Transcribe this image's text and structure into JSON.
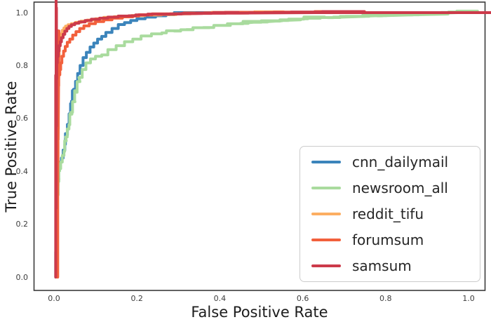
{
  "figure": {
    "background": "#ffffff",
    "spine_color": "#3b3b3b",
    "tick_color": "#3d3d3d",
    "label_color": "#1c1c1c"
  },
  "chart_data": {
    "type": "line",
    "subtype": "roc-curve",
    "title": "",
    "xlabel": "False Positive Rate",
    "ylabel": "True Positive Rate",
    "xlim": [
      -0.05,
      1.05
    ],
    "ylim": [
      -0.05,
      1.05
    ],
    "xticks": [
      "0.0",
      "0.2",
      "0.4",
      "0.6",
      "0.8",
      "1.0"
    ],
    "yticks": [
      "0.0",
      "0.2",
      "0.4",
      "0.6",
      "0.8",
      "1.0"
    ],
    "xtick_values": [
      0,
      0.2,
      0.4,
      0.6,
      0.8,
      1.0
    ],
    "ytick_values": [
      0,
      0.2,
      0.4,
      0.6,
      0.8,
      1.0
    ],
    "grid": false,
    "legend_position": "lower right",
    "series": [
      {
        "name": "cnn_dailymail",
        "color": "#3b84bb",
        "points": [
          [
            0.004,
            0
          ],
          [
            0.004,
            0.06
          ],
          [
            0.005,
            0.17
          ],
          [
            0.006,
            0.26
          ],
          [
            0.007,
            0.33
          ],
          [
            0.009,
            0.37
          ],
          [
            0.011,
            0.4
          ],
          [
            0.014,
            0.42
          ],
          [
            0.018,
            0.435
          ],
          [
            0.022,
            0.45
          ],
          [
            0.026,
            0.48
          ],
          [
            0.03,
            0.52
          ],
          [
            0.034,
            0.56
          ],
          [
            0.038,
            0.6
          ],
          [
            0.042,
            0.64
          ],
          [
            0.047,
            0.68
          ],
          [
            0.052,
            0.71
          ],
          [
            0.057,
            0.74
          ],
          [
            0.063,
            0.77
          ],
          [
            0.07,
            0.8
          ],
          [
            0.078,
            0.83
          ],
          [
            0.087,
            0.85
          ],
          [
            0.096,
            0.87
          ],
          [
            0.105,
            0.885
          ],
          [
            0.115,
            0.9
          ],
          [
            0.125,
            0.91
          ],
          [
            0.14,
            0.925
          ],
          [
            0.155,
            0.94
          ],
          [
            0.17,
            0.955
          ],
          [
            0.185,
            0.962
          ],
          [
            0.2,
            0.97
          ],
          [
            0.22,
            0.977
          ],
          [
            0.245,
            0.983
          ],
          [
            0.27,
            0.988
          ],
          [
            0.29,
            0.992
          ],
          [
            0.305,
            1
          ],
          [
            1,
            1
          ]
        ]
      },
      {
        "name": "newsroom_all",
        "color": "#a9db9e",
        "points": [
          [
            0.006,
            0
          ],
          [
            0.006,
            0.08
          ],
          [
            0.007,
            0.18
          ],
          [
            0.009,
            0.28
          ],
          [
            0.011,
            0.34
          ],
          [
            0.013,
            0.38
          ],
          [
            0.016,
            0.41
          ],
          [
            0.02,
            0.435
          ],
          [
            0.024,
            0.46
          ],
          [
            0.028,
            0.5
          ],
          [
            0.032,
            0.53
          ],
          [
            0.036,
            0.56
          ],
          [
            0.041,
            0.6
          ],
          [
            0.047,
            0.64
          ],
          [
            0.053,
            0.68
          ],
          [
            0.06,
            0.72
          ],
          [
            0.068,
            0.755
          ],
          [
            0.077,
            0.785
          ],
          [
            0.088,
            0.81
          ],
          [
            0.1,
            0.825
          ],
          [
            0.115,
            0.835
          ],
          [
            0.13,
            0.84
          ],
          [
            0.15,
            0.86
          ],
          [
            0.17,
            0.875
          ],
          [
            0.19,
            0.89
          ],
          [
            0.21,
            0.9
          ],
          [
            0.235,
            0.912
          ],
          [
            0.26,
            0.92
          ],
          [
            0.29,
            0.928
          ],
          [
            0.32,
            0.933
          ],
          [
            0.36,
            0.94
          ],
          [
            0.4,
            0.948
          ],
          [
            0.45,
            0.957
          ],
          [
            0.5,
            0.963
          ],
          [
            0.55,
            0.968
          ],
          [
            0.6,
            0.976
          ],
          [
            0.66,
            0.98
          ],
          [
            0.72,
            0.984
          ],
          [
            0.78,
            0.987
          ],
          [
            0.85,
            0.99
          ],
          [
            0.92,
            0.995
          ],
          [
            0.97,
            1
          ],
          [
            1,
            1
          ]
        ]
      },
      {
        "name": "reddit_tifu",
        "color": "#fcae62",
        "points": [
          [
            0.007,
            0
          ],
          [
            0.007,
            0.3
          ],
          [
            0.008,
            0.5
          ],
          [
            0.009,
            0.62
          ],
          [
            0.01,
            0.72
          ],
          [
            0.011,
            0.78
          ],
          [
            0.012,
            0.82
          ],
          [
            0.013,
            0.855
          ],
          [
            0.015,
            0.885
          ],
          [
            0.017,
            0.905
          ],
          [
            0.02,
            0.92
          ],
          [
            0.024,
            0.933
          ],
          [
            0.028,
            0.942
          ],
          [
            0.034,
            0.949
          ],
          [
            0.042,
            0.954
          ],
          [
            0.052,
            0.958
          ],
          [
            0.065,
            0.963
          ],
          [
            0.08,
            0.968
          ],
          [
            0.1,
            0.972
          ],
          [
            0.12,
            0.977
          ],
          [
            0.145,
            0.982
          ],
          [
            0.17,
            0.985
          ],
          [
            0.2,
            0.988
          ],
          [
            0.24,
            0.99
          ],
          [
            0.28,
            0.992
          ],
          [
            0.33,
            0.995
          ],
          [
            0.38,
            0.998
          ],
          [
            0.45,
            1
          ],
          [
            1,
            1
          ]
        ]
      },
      {
        "name": "forumsum",
        "color": "#f2603c",
        "points": [
          [
            0.009,
            0
          ],
          [
            0.009,
            0.3
          ],
          [
            0.01,
            0.5
          ],
          [
            0.01,
            0.62
          ],
          [
            0.011,
            0.7
          ],
          [
            0.012,
            0.74
          ],
          [
            0.014,
            0.765
          ],
          [
            0.016,
            0.785
          ],
          [
            0.019,
            0.81
          ],
          [
            0.023,
            0.835
          ],
          [
            0.027,
            0.855
          ],
          [
            0.032,
            0.872
          ],
          [
            0.038,
            0.888
          ],
          [
            0.045,
            0.9
          ],
          [
            0.053,
            0.915
          ],
          [
            0.062,
            0.928
          ],
          [
            0.072,
            0.94
          ],
          [
            0.085,
            0.95
          ],
          [
            0.1,
            0.958
          ],
          [
            0.12,
            0.966
          ],
          [
            0.14,
            0.973
          ],
          [
            0.165,
            0.979
          ],
          [
            0.19,
            0.984
          ],
          [
            0.22,
            0.989
          ],
          [
            0.26,
            0.993
          ],
          [
            0.31,
            0.996
          ],
          [
            0.38,
            0.998
          ],
          [
            0.5,
            1
          ],
          [
            1,
            1
          ]
        ]
      },
      {
        "name": "samsum",
        "color": "#cc3a4a",
        "points": [
          [
            0.004,
            0
          ],
          [
            0.004,
            0.25
          ],
          [
            0.005,
            0.26
          ],
          [
            0.005,
            0.55
          ],
          [
            0.006,
            0.57
          ],
          [
            0.006,
            0.72
          ],
          [
            0.007,
            0.78
          ],
          [
            0.008,
            0.81
          ],
          [
            0.01,
            0.835
          ],
          [
            0.012,
            0.855
          ],
          [
            0.015,
            0.875
          ],
          [
            0.018,
            0.89
          ],
          [
            0.022,
            0.905
          ],
          [
            0.026,
            0.918
          ],
          [
            0.031,
            0.93
          ],
          [
            0.036,
            0.94
          ],
          [
            0.042,
            0.948
          ],
          [
            0.05,
            0.954
          ],
          [
            0.06,
            0.96
          ],
          [
            0.075,
            0.965
          ],
          [
            0.09,
            0.97
          ],
          [
            0.11,
            0.975
          ],
          [
            0.13,
            0.979
          ],
          [
            0.155,
            0.983
          ],
          [
            0.18,
            0.987
          ],
          [
            0.21,
            0.99
          ],
          [
            0.25,
            0.993
          ],
          [
            0.3,
            0.995
          ],
          [
            0.36,
            0.997
          ],
          [
            0.45,
            0.998
          ],
          [
            0.55,
            1
          ],
          [
            1,
            1
          ]
        ]
      }
    ]
  }
}
